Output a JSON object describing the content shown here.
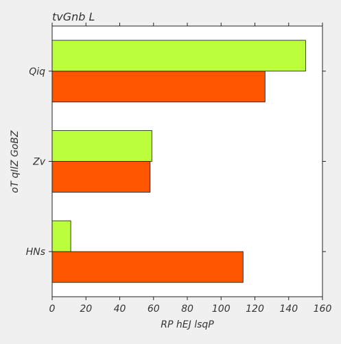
{
  "chart_data": {
    "type": "bar",
    "orientation": "horizontal",
    "title": "tvGnb L",
    "xlabel": "RP hEJ lsqP",
    "ylabel": "oT qIlZ GoBZ",
    "categories": [
      "HNs",
      "Zv",
      "Qiq"
    ],
    "series": [
      {
        "name": "orange",
        "color": "#ff5500",
        "values": [
          113,
          58,
          126
        ]
      },
      {
        "name": "lime",
        "color": "#bbff3c",
        "values": [
          11,
          59,
          150
        ]
      }
    ],
    "xlim": [
      0,
      160
    ],
    "xticks": [
      0,
      20,
      40,
      60,
      80,
      100,
      120,
      140,
      160
    ],
    "grid": false,
    "background_color": "#f0f0f0",
    "plot_background_color": "#ffffff"
  }
}
